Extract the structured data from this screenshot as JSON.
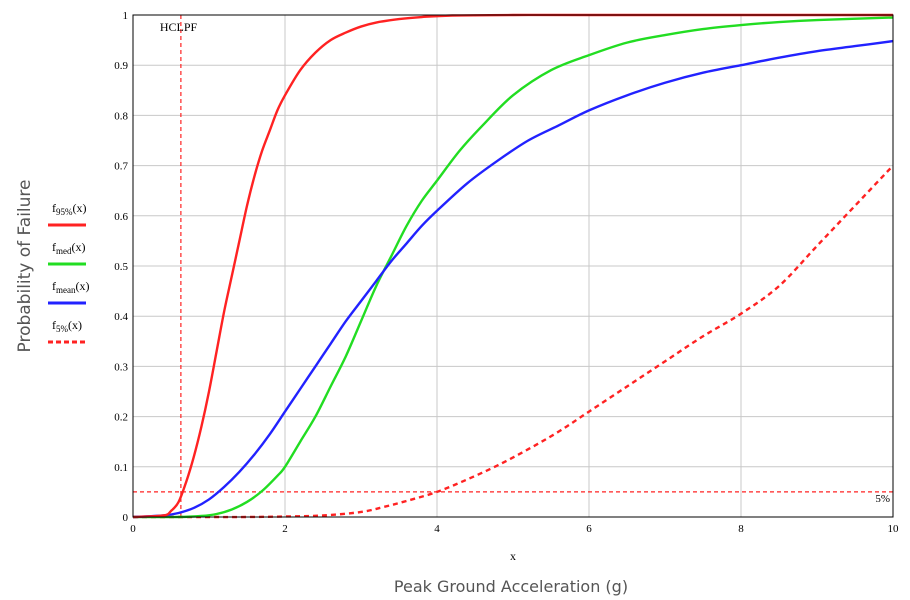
{
  "chart_data": {
    "type": "line",
    "title": "",
    "xlabel": "Peak Ground Acceleration (g)",
    "xvar": "x",
    "ylabel": "Probability of Failure",
    "xlim": [
      0,
      10
    ],
    "ylim": [
      0,
      1
    ],
    "xticks": [
      "0",
      "2",
      "4",
      "6",
      "8",
      "10"
    ],
    "yticks": [
      "0",
      "0.1",
      "0.2",
      "0.3",
      "0.4",
      "0.5",
      "0.6",
      "0.7",
      "0.8",
      "0.9",
      "1"
    ],
    "grid": true,
    "legend_position": "left",
    "annotations": {
      "hclpf": {
        "label": "HCLPF",
        "x": 0.63
      },
      "five_percent": {
        "label": "5%",
        "y": 0.05
      }
    },
    "series": [
      {
        "name": "f95%(x)",
        "base": "f",
        "sub": "95%",
        "arg": "(x)",
        "color": "#ff2222",
        "dash": false,
        "x": [
          0,
          0.4,
          0.5,
          0.6,
          0.7,
          0.8,
          0.9,
          1.0,
          1.1,
          1.2,
          1.3,
          1.4,
          1.5,
          1.6,
          1.7,
          1.8,
          1.9,
          2.0,
          2.2,
          2.4,
          2.6,
          2.8,
          3.0,
          3.2,
          3.5,
          3.8,
          4.2,
          5,
          6,
          8,
          10
        ],
        "y": [
          0,
          0.003,
          0.012,
          0.03,
          0.07,
          0.12,
          0.18,
          0.25,
          0.33,
          0.41,
          0.48,
          0.55,
          0.62,
          0.68,
          0.73,
          0.77,
          0.81,
          0.84,
          0.89,
          0.925,
          0.95,
          0.965,
          0.977,
          0.985,
          0.992,
          0.996,
          0.999,
          1,
          1,
          1,
          1
        ]
      },
      {
        "name": "fmed(x)",
        "base": "f",
        "sub": "med",
        "arg": "(x)",
        "color": "#22dd22",
        "dash": false,
        "x": [
          0,
          0.6,
          0.9,
          1.1,
          1.3,
          1.5,
          1.7,
          1.9,
          2.0,
          2.2,
          2.4,
          2.6,
          2.8,
          3.0,
          3.2,
          3.4,
          3.6,
          3.8,
          4.0,
          4.3,
          4.6,
          5.0,
          5.5,
          6.0,
          6.5,
          7.0,
          7.5,
          8.0,
          8.5,
          9.0,
          10
        ],
        "y": [
          0,
          0,
          0.002,
          0.006,
          0.015,
          0.03,
          0.052,
          0.082,
          0.1,
          0.15,
          0.2,
          0.26,
          0.32,
          0.39,
          0.46,
          0.52,
          0.58,
          0.63,
          0.67,
          0.73,
          0.78,
          0.84,
          0.89,
          0.92,
          0.945,
          0.96,
          0.972,
          0.98,
          0.986,
          0.99,
          0.995
        ]
      },
      {
        "name": "fmean(x)",
        "base": "f",
        "sub": "mean",
        "arg": "(x)",
        "color": "#2222ff",
        "dash": false,
        "x": [
          0,
          0.4,
          0.6,
          0.8,
          1.0,
          1.2,
          1.4,
          1.6,
          1.8,
          2.0,
          2.2,
          2.4,
          2.6,
          2.8,
          3.0,
          3.2,
          3.4,
          3.6,
          3.8,
          4.0,
          4.4,
          4.8,
          5.2,
          5.6,
          6.0,
          6.5,
          7.0,
          7.5,
          8.0,
          8.5,
          9.0,
          9.5,
          10
        ],
        "y": [
          0,
          0.003,
          0.008,
          0.018,
          0.035,
          0.06,
          0.09,
          0.125,
          0.165,
          0.21,
          0.255,
          0.3,
          0.345,
          0.39,
          0.43,
          0.47,
          0.51,
          0.545,
          0.58,
          0.61,
          0.665,
          0.71,
          0.75,
          0.78,
          0.81,
          0.84,
          0.865,
          0.885,
          0.9,
          0.915,
          0.928,
          0.938,
          0.948
        ]
      },
      {
        "name": "f5%(x)",
        "base": "f",
        "sub": "5%",
        "arg": "(x)",
        "color": "#ff2222",
        "dash": true,
        "x": [
          0,
          1.0,
          1.5,
          2.0,
          2.5,
          3.0,
          3.3,
          3.6,
          4.0,
          4.4,
          4.8,
          5.2,
          5.6,
          6.0,
          6.5,
          7.0,
          7.5,
          8.0,
          8.5,
          9.0,
          9.5,
          10
        ],
        "y": [
          0,
          0,
          0,
          0.001,
          0.003,
          0.01,
          0.02,
          0.032,
          0.05,
          0.075,
          0.103,
          0.135,
          0.17,
          0.21,
          0.26,
          0.31,
          0.36,
          0.405,
          0.46,
          0.54,
          0.62,
          0.7
        ]
      }
    ]
  }
}
